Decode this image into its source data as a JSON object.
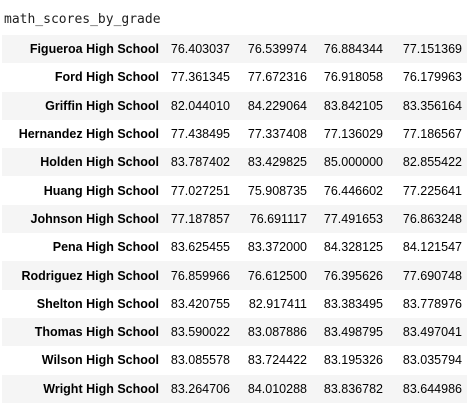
{
  "cell": {
    "code": "math_scores_by_grade"
  },
  "table": {
    "rows": [
      {
        "school": "Figueroa High School",
        "values": [
          "76.403037",
          "76.539974",
          "76.884344",
          "77.151369"
        ]
      },
      {
        "school": "Ford High School",
        "values": [
          "77.361345",
          "77.672316",
          "76.918058",
          "76.179963"
        ]
      },
      {
        "school": "Griffin High School",
        "values": [
          "82.044010",
          "84.229064",
          "83.842105",
          "83.356164"
        ]
      },
      {
        "school": "Hernandez High School",
        "values": [
          "77.438495",
          "77.337408",
          "77.136029",
          "77.186567"
        ]
      },
      {
        "school": "Holden High School",
        "values": [
          "83.787402",
          "83.429825",
          "85.000000",
          "82.855422"
        ]
      },
      {
        "school": "Huang High School",
        "values": [
          "77.027251",
          "75.908735",
          "76.446602",
          "77.225641"
        ]
      },
      {
        "school": "Johnson High School",
        "values": [
          "77.187857",
          "76.691117",
          "77.491653",
          "76.863248"
        ]
      },
      {
        "school": "Pena High School",
        "values": [
          "83.625455",
          "83.372000",
          "84.328125",
          "84.121547"
        ]
      },
      {
        "school": "Rodriguez High School",
        "values": [
          "76.859966",
          "76.612500",
          "76.395626",
          "77.690748"
        ]
      },
      {
        "school": "Shelton High School",
        "values": [
          "83.420755",
          "82.917411",
          "83.383495",
          "83.778976"
        ]
      },
      {
        "school": "Thomas High School",
        "values": [
          "83.590022",
          "83.087886",
          "83.498795",
          "83.497041"
        ]
      },
      {
        "school": "Wilson High School",
        "values": [
          "83.085578",
          "83.724422",
          "83.195326",
          "83.035794"
        ]
      },
      {
        "school": "Wright High School",
        "values": [
          "83.264706",
          "84.010288",
          "83.836782",
          "83.644986"
        ]
      }
    ]
  }
}
